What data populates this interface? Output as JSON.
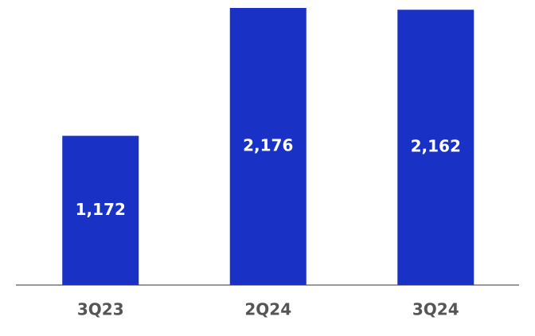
{
  "chart_data": {
    "type": "bar",
    "categories": [
      "3Q23",
      "2Q24",
      "3Q24"
    ],
    "values": [
      1172,
      2176,
      2162
    ],
    "value_labels": [
      "1,172",
      "2,176",
      "2,162"
    ],
    "color": "#1a31c5"
  }
}
